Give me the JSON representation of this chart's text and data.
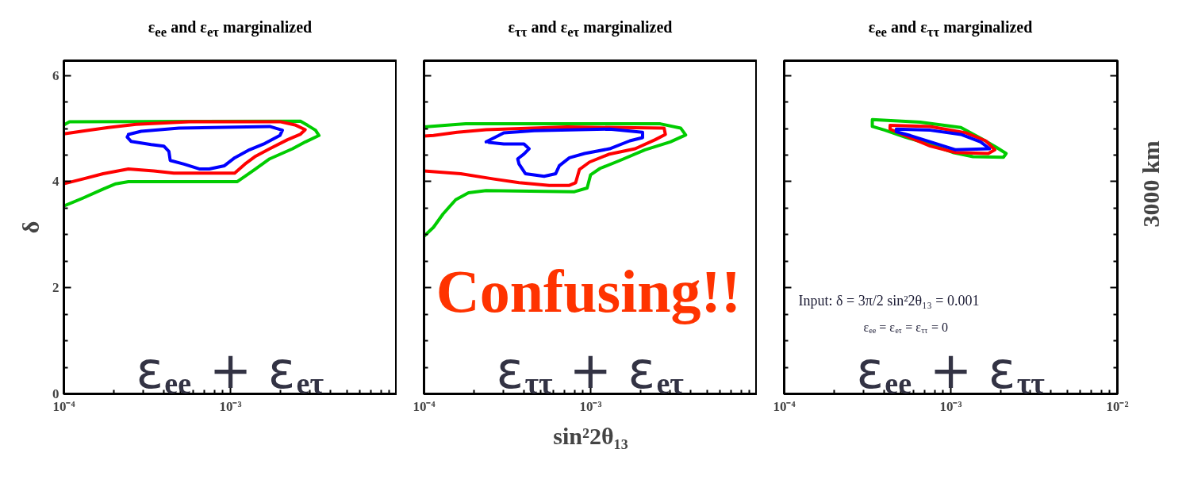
{
  "chart_data": [
    {
      "type": "line",
      "title": "ε$_{ee}$ and ε$_{eτ}$ marginalized",
      "ylabel": "δ",
      "log": "x",
      "xlim": [
        0.0001,
        0.01
      ],
      "ylim": [
        0,
        6.28
      ],
      "grid": false,
      "line_style": "solid",
      "xticks": [
        {
          "value": 0.0001,
          "label": "10⁻⁴"
        },
        {
          "value": 0.0002,
          "label": null
        },
        {
          "value": 0.0003,
          "label": null
        },
        {
          "value": 0.0004,
          "label": null
        },
        {
          "value": 0.0005,
          "label": null
        },
        {
          "value": 0.0006,
          "label": null
        },
        {
          "value": 0.0007,
          "label": null
        },
        {
          "value": 0.0008,
          "label": null
        },
        {
          "value": 0.0009,
          "label": null
        },
        {
          "value": 0.001,
          "label": "10⁻³"
        },
        {
          "value": 0.002,
          "label": null
        },
        {
          "value": 0.003,
          "label": null
        },
        {
          "value": 0.004,
          "label": null
        },
        {
          "value": 0.005,
          "label": null
        },
        {
          "value": 0.006,
          "label": null
        },
        {
          "value": 0.007,
          "label": null
        },
        {
          "value": 0.008,
          "label": null
        },
        {
          "value": 0.009,
          "label": null
        },
        {
          "value": 0.01,
          "label": null
        }
      ],
      "yticks": [
        0,
        {
          "value": 0.5,
          "label": null
        },
        {
          "value": 1,
          "label": null
        },
        {
          "value": 1.5,
          "label": null
        },
        2,
        {
          "value": 2.5,
          "label": null
        },
        {
          "value": 3,
          "label": null
        },
        {
          "value": 3.5,
          "label": null
        },
        4,
        {
          "value": 4.5,
          "label": null
        },
        {
          "value": 5,
          "label": null
        },
        {
          "value": 5.5,
          "label": null
        },
        6
      ],
      "series": [
        {
          "color": "#00cc00",
          "x": [
            0.0001,
            0.000108,
            0.00263,
            0.00291,
            0.00324,
            0.0034,
            0.00282,
            0.00236,
            0.00172,
            0.0014,
            0.00122,
            0.0011,
            0.000244,
            0.000205,
            0.000172,
            0.00013,
            0.0001
          ],
          "values": [
            5.07,
            5.13,
            5.14,
            5.06,
            4.97,
            4.87,
            4.75,
            4.62,
            4.43,
            4.23,
            4.1,
            4.0,
            4.0,
            3.96,
            3.86,
            3.69,
            3.54
          ]
        },
        {
          "color": "#ff0000",
          "x": [
            0.0001,
            0.000135,
            0.000185,
            0.000271,
            0.000564,
            0.00198,
            0.00244,
            0.00281,
            0.00262,
            0.0022,
            0.00172,
            0.0014,
            0.00122,
            0.00106,
            0.000457,
            0.000347,
            0.000244,
            0.000172,
            0.00013,
            0.0001
          ],
          "values": [
            4.9,
            4.96,
            5.02,
            5.08,
            5.13,
            5.13,
            5.07,
            4.98,
            4.89,
            4.79,
            4.62,
            4.47,
            4.33,
            4.16,
            4.16,
            4.2,
            4.24,
            4.15,
            4.05,
            3.96
          ]
        },
        {
          "color": "#0000ff",
          "x": [
            0.000244,
            0.000291,
            0.000491,
            0.00172,
            0.00205,
            0.00198,
            0.00161,
            0.0013,
            0.00106,
            0.00092,
            0.000746,
            0.000649,
            0.000526,
            0.000435,
            0.000427,
            0.000398,
            0.000334,
            0.000253,
            0.00024,
            0.000243
          ],
          "values": [
            4.89,
            4.95,
            5.01,
            5.04,
            4.97,
            4.87,
            4.72,
            4.6,
            4.45,
            4.3,
            4.24,
            4.24,
            4.33,
            4.4,
            4.57,
            4.67,
            4.7,
            4.76,
            4.84,
            4.87
          ]
        }
      ],
      "annotations": [
        "ε$_{ee}$ + ε$_{eτ}$"
      ]
    },
    {
      "type": "line",
      "title": "ε$_{ττ}$ and ε$_{eτ}$ marginalized",
      "xlabel": "sin²2θ₁₃",
      "log": "x",
      "xlim": [
        0.0001,
        0.01
      ],
      "ylim": [
        0,
        6.28
      ],
      "grid": false,
      "line_style": "solid",
      "tick_labels": "x",
      "xticks": [
        {
          "value": 0.0001,
          "label": "10⁻⁴"
        },
        {
          "value": 0.0002,
          "label": null
        },
        {
          "value": 0.0003,
          "label": null
        },
        {
          "value": 0.0004,
          "label": null
        },
        {
          "value": 0.0005,
          "label": null
        },
        {
          "value": 0.0006,
          "label": null
        },
        {
          "value": 0.0007,
          "label": null
        },
        {
          "value": 0.0008,
          "label": null
        },
        {
          "value": 0.0009,
          "label": null
        },
        {
          "value": 0.001,
          "label": "10⁻³"
        },
        {
          "value": 0.002,
          "label": null
        },
        {
          "value": 0.003,
          "label": null
        },
        {
          "value": 0.004,
          "label": null
        },
        {
          "value": 0.005,
          "label": null
        },
        {
          "value": 0.006,
          "label": null
        },
        {
          "value": 0.007,
          "label": null
        },
        {
          "value": 0.008,
          "label": null
        },
        {
          "value": 0.009,
          "label": null
        },
        {
          "value": 0.01,
          "label": null
        }
      ],
      "yticks": [
        0,
        {
          "value": 0.5,
          "label": null
        },
        {
          "value": 1,
          "label": null
        },
        {
          "value": 1.5,
          "label": null
        },
        2,
        {
          "value": 2.5,
          "label": null
        },
        {
          "value": 3,
          "label": null
        },
        {
          "value": 3.5,
          "label": null
        },
        4,
        {
          "value": 4.5,
          "label": null
        },
        {
          "value": 5,
          "label": null
        },
        {
          "value": 5.5,
          "label": null
        },
        6
      ],
      "series": [
        {
          "color": "#00cc00",
          "x": [
            0.0001,
            0.000178,
            0.00262,
            0.00347,
            0.00372,
            0.00301,
            0.00212,
            0.0015,
            0.00114,
            0.001,
            0.000953,
            0.0008,
            0.000236,
            0.000185,
            0.000155,
            0.00013,
            0.000114,
            0.0001
          ],
          "values": [
            5.03,
            5.09,
            5.09,
            5.01,
            4.88,
            4.75,
            4.6,
            4.4,
            4.25,
            4.13,
            3.88,
            3.81,
            3.83,
            3.79,
            3.66,
            3.39,
            3.14,
            2.97
          ]
        },
        {
          "color": "#ff0000",
          "x": [
            0.0001,
            0.000114,
            0.000158,
            0.000236,
            0.000721,
            0.00276,
            0.00281,
            0.00244,
            0.00185,
            0.0013,
            0.000986,
            0.000857,
            0.000813,
            0.000746,
            0.000564,
            0.000372,
            0.000262,
            0.000166,
            0.0001
          ],
          "values": [
            4.86,
            4.87,
            4.93,
            4.98,
            5.03,
            5.01,
            4.89,
            4.79,
            4.62,
            4.52,
            4.37,
            4.23,
            3.98,
            3.93,
            3.93,
            3.98,
            4.05,
            4.15,
            4.2
          ]
        },
        {
          "color": "#0000ff",
          "x": [
            0.000236,
            0.000281,
            0.000301,
            0.000457,
            0.0013,
            0.00205,
            0.00205,
            0.00172,
            0.0013,
            0.00092,
            0.000746,
            0.000649,
            0.000617,
            0.000526,
            0.000406,
            0.000372,
            0.000365,
            0.000398,
            0.000427,
            0.000398,
            0.000301,
            0.000245
          ],
          "values": [
            4.75,
            4.87,
            4.92,
            4.96,
            4.99,
            4.93,
            4.83,
            4.77,
            4.62,
            4.53,
            4.45,
            4.3,
            4.15,
            4.1,
            4.15,
            4.33,
            4.43,
            4.52,
            4.62,
            4.71,
            4.71,
            4.74
          ]
        }
      ],
      "annotations": [
        "Confusing!!",
        "ε$_{ττ}$ + ε$_{eτ}$"
      ]
    },
    {
      "type": "line",
      "title": "ε$_{ee}$ and ε$_{ττ}$ marginalized",
      "y2label": "3000 km",
      "log": "x",
      "xlim": [
        0.0001,
        0.01
      ],
      "ylim": [
        0,
        6.28
      ],
      "grid": false,
      "line_style": "solid",
      "tick_labels": "x",
      "xticks": [
        {
          "value": 0.0001,
          "label": "10⁻⁴"
        },
        {
          "value": 0.0002,
          "label": null
        },
        {
          "value": 0.0003,
          "label": null
        },
        {
          "value": 0.0004,
          "label": null
        },
        {
          "value": 0.0005,
          "label": null
        },
        {
          "value": 0.0006,
          "label": null
        },
        {
          "value": 0.0007,
          "label": null
        },
        {
          "value": 0.0008,
          "label": null
        },
        {
          "value": 0.0009,
          "label": null
        },
        {
          "value": 0.001,
          "label": "10⁻³"
        },
        {
          "value": 0.002,
          "label": null
        },
        {
          "value": 0.003,
          "label": null
        },
        {
          "value": 0.004,
          "label": null
        },
        {
          "value": 0.005,
          "label": null
        },
        {
          "value": 0.006,
          "label": null
        },
        {
          "value": 0.007,
          "label": null
        },
        {
          "value": 0.008,
          "label": null
        },
        {
          "value": 0.009,
          "label": null
        },
        {
          "value": 0.01,
          "label": "10⁻²"
        }
      ],
      "yticks": [
        0,
        {
          "value": 0.5,
          "label": null
        },
        {
          "value": 1,
          "label": null
        },
        {
          "value": 1.5,
          "label": null
        },
        2,
        {
          "value": 2.5,
          "label": null
        },
        {
          "value": 3,
          "label": null
        },
        {
          "value": 3.5,
          "label": null
        },
        4,
        {
          "value": 4.5,
          "label": null
        },
        {
          "value": 5,
          "label": null
        },
        {
          "value": 5.5,
          "label": null
        },
        6
      ],
      "series": [
        {
          "color": "#00cc00",
          "x": [
            0.000338,
            0.000656,
            0.00115,
            0.00151,
            0.00187,
            0.00215,
            0.00207,
            0.00136,
            0.00103,
            0.000753,
            0.000532,
            0.000403,
            0.000338,
            0.000338
          ],
          "values": [
            5.17,
            5.12,
            5.02,
            4.82,
            4.65,
            4.53,
            4.46,
            4.47,
            4.55,
            4.7,
            4.84,
            4.97,
            5.04,
            5.15
          ]
        },
        {
          "color": "#ff0000",
          "x": [
            0.000432,
            0.000753,
            0.00123,
            0.00162,
            0.00184,
            0.00168,
            0.00107,
            0.000753,
            0.000532,
            0.000432,
            0.000432
          ],
          "values": [
            5.06,
            5.04,
            4.92,
            4.77,
            4.6,
            4.53,
            4.55,
            4.67,
            4.87,
            4.99,
            5.04
          ]
        },
        {
          "color": "#0000ff",
          "x": [
            0.000471,
            0.000753,
            0.00115,
            0.00151,
            0.00171,
            0.00107,
            0.000809,
            0.00057,
            0.000471,
            0.000471
          ],
          "values": [
            4.99,
            4.97,
            4.89,
            4.75,
            4.62,
            4.6,
            4.72,
            4.87,
            4.94,
            4.97
          ]
        }
      ],
      "annotations": [
        "Input: δ = 3π/2 sin²2θ₁₃ = 0.001",
        "ε$_{ee}$ = ε$_{eτ}$ = ε$_{ττ}$ = 0",
        "ε$_{ee}$ + ε$_{ττ}$"
      ]
    }
  ]
}
